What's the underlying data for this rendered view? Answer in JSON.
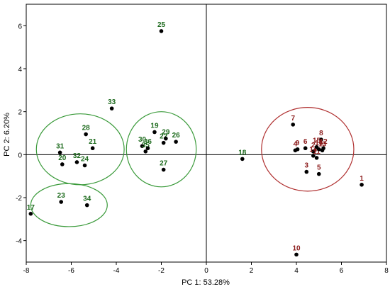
{
  "chart_data": {
    "type": "scatter",
    "title": "",
    "xlabel": "PC 1: 53.28%",
    "ylabel": "PC 2:  6.20%",
    "xlim": [
      -8,
      8
    ],
    "ylim": [
      -5,
      7
    ],
    "xticks": [
      -8,
      -6,
      -4,
      -2,
      0,
      2,
      4,
      6,
      8
    ],
    "yticks": [
      -4,
      -2,
      0,
      2,
      4,
      6
    ],
    "grid": false,
    "colors": {
      "green": "#1e6b1e",
      "red": "#8b1a1a",
      "green_ellipse": "#3a9a3a",
      "red_ellipse": "#b03030"
    },
    "points": [
      {
        "label": "1",
        "x": 6.9,
        "y": -1.4,
        "group": "red"
      },
      {
        "label": "2",
        "x": 4.75,
        "y": 0.15,
        "group": "red"
      },
      {
        "label": "3",
        "x": 4.45,
        "y": -0.8,
        "group": "red"
      },
      {
        "label": "4",
        "x": 3.95,
        "y": 0.2,
        "group": "red"
      },
      {
        "label": "5",
        "x": 5.0,
        "y": -0.9,
        "group": "red"
      },
      {
        "label": "6",
        "x": 4.4,
        "y": 0.3,
        "group": "red"
      },
      {
        "label": "7",
        "x": 3.85,
        "y": 1.4,
        "group": "red"
      },
      {
        "label": "8",
        "x": 5.1,
        "y": 0.7,
        "group": "red"
      },
      {
        "label": "9",
        "x": 4.05,
        "y": 0.25,
        "group": "red"
      },
      {
        "label": "10",
        "x": 4.0,
        "y": -4.65,
        "group": "red"
      },
      {
        "label": "11",
        "x": 4.9,
        "y": -0.15,
        "group": "red"
      },
      {
        "label": "12",
        "x": 5.2,
        "y": 0.3,
        "group": "red"
      },
      {
        "label": "13",
        "x": 5.15,
        "y": 0.2,
        "group": "red"
      },
      {
        "label": "14",
        "x": 4.75,
        "y": -0.05,
        "group": "red"
      },
      {
        "label": "15",
        "x": 4.9,
        "y": 0.35,
        "group": "red"
      },
      {
        "label": "16",
        "x": 5.0,
        "y": 0.25,
        "group": "red"
      },
      {
        "label": "17",
        "x": -7.8,
        "y": -2.75,
        "group": "green"
      },
      {
        "label": "18",
        "x": 1.6,
        "y": -0.2,
        "group": "green"
      },
      {
        "label": "19",
        "x": -2.3,
        "y": 1.05,
        "group": "green"
      },
      {
        "label": "20",
        "x": -6.4,
        "y": -0.45,
        "group": "green"
      },
      {
        "label": "21",
        "x": -5.05,
        "y": 0.3,
        "group": "green"
      },
      {
        "label": "22",
        "x": -1.9,
        "y": 0.55,
        "group": "green"
      },
      {
        "label": "23",
        "x": -6.45,
        "y": -2.2,
        "group": "green"
      },
      {
        "label": "24",
        "x": -5.4,
        "y": -0.5,
        "group": "green"
      },
      {
        "label": "25",
        "x": -2.0,
        "y": 5.75,
        "group": "green"
      },
      {
        "label": "26",
        "x": -1.35,
        "y": 0.6,
        "group": "green"
      },
      {
        "label": "27",
        "x": -1.9,
        "y": -0.7,
        "group": "green"
      },
      {
        "label": "28",
        "x": -5.35,
        "y": 0.95,
        "group": "green"
      },
      {
        "label": "29",
        "x": -1.8,
        "y": 0.75,
        "group": "green"
      },
      {
        "label": "30",
        "x": -2.85,
        "y": 0.4,
        "group": "green"
      },
      {
        "label": "31",
        "x": -6.5,
        "y": 0.1,
        "group": "green"
      },
      {
        "label": "32",
        "x": -5.75,
        "y": -0.35,
        "group": "green"
      },
      {
        "label": "33",
        "x": -4.2,
        "y": 2.15,
        "group": "green"
      },
      {
        "label": "34",
        "x": -5.3,
        "y": -2.35,
        "group": "green"
      },
      {
        "label": "35",
        "x": -2.7,
        "y": 0.15,
        "group": "green"
      },
      {
        "label": "36",
        "x": -2.6,
        "y": 0.3,
        "group": "green"
      }
    ],
    "ellipses": [
      {
        "name": "left-upper-cluster",
        "cx": -5.6,
        "cy": 0.25,
        "rx": 1.95,
        "ry": 1.65,
        "group": "green"
      },
      {
        "name": "center-cluster",
        "cx": -2.0,
        "cy": 0.25,
        "rx": 1.55,
        "ry": 1.75,
        "group": "green"
      },
      {
        "name": "left-lower-cluster",
        "cx": -6.1,
        "cy": -2.35,
        "rx": 1.7,
        "ry": 1.0,
        "group": "green"
      },
      {
        "name": "right-cluster",
        "cx": 4.5,
        "cy": 0.25,
        "rx": 2.05,
        "ry": 1.95,
        "group": "red"
      }
    ]
  }
}
